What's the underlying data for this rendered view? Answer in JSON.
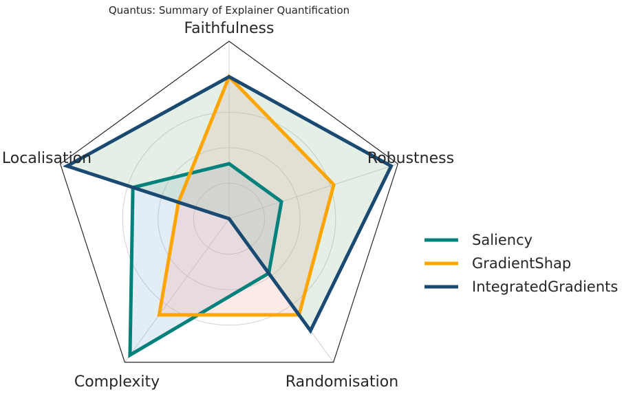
{
  "chart_data": {
    "type": "radar",
    "title": "Quantus: Summary of Explainer Quantification",
    "axes": [
      "Faithfulness",
      "Robustness",
      "Randomisation",
      "Complexity",
      "Localisation"
    ],
    "rlim": [
      0,
      1
    ],
    "grid": true,
    "legend_position": "right",
    "series": [
      {
        "name": "Saliency",
        "color": "#00817b",
        "values": [
          0.31,
          0.31,
          0.38,
          0.95,
          0.57
        ]
      },
      {
        "name": "GradientShap",
        "color": "#ffa500",
        "values": [
          0.8,
          0.62,
          0.67,
          0.67,
          0.3
        ]
      },
      {
        "name": "IntegratedGradients",
        "color": "#1a4a72",
        "values": [
          0.8,
          0.96,
          0.78,
          0.0,
          0.96
        ]
      }
    ],
    "fill_colors": {
      "Saliency": "#8fb6d8",
      "GradientShap": "#f4a8a2",
      "IntegratedGradients": "#92c49a"
    }
  }
}
